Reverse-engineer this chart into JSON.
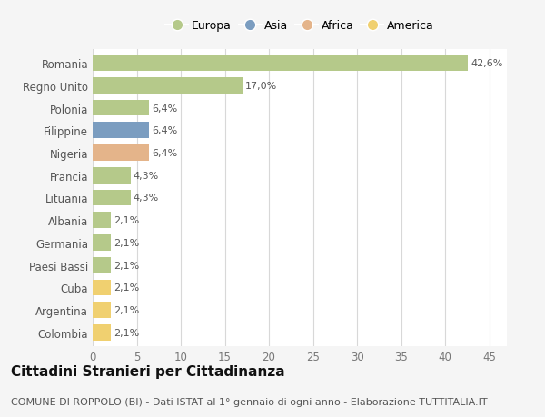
{
  "countries": [
    "Romania",
    "Regno Unito",
    "Polonia",
    "Filippine",
    "Nigeria",
    "Francia",
    "Lituania",
    "Albania",
    "Germania",
    "Paesi Bassi",
    "Cuba",
    "Argentina",
    "Colombia"
  ],
  "values": [
    42.6,
    17.0,
    6.4,
    6.4,
    6.4,
    4.3,
    4.3,
    2.1,
    2.1,
    2.1,
    2.1,
    2.1,
    2.1
  ],
  "labels": [
    "42,6%",
    "17,0%",
    "6,4%",
    "6,4%",
    "6,4%",
    "4,3%",
    "4,3%",
    "2,1%",
    "2,1%",
    "2,1%",
    "2,1%",
    "2,1%",
    "2,1%"
  ],
  "colors": [
    "#b5c98a",
    "#b5c98a",
    "#b5c98a",
    "#7b9dc0",
    "#e4b48a",
    "#b5c98a",
    "#b5c98a",
    "#b5c98a",
    "#b5c98a",
    "#b5c98a",
    "#f0d070",
    "#f0d070",
    "#f0d070"
  ],
  "legend_labels": [
    "Europa",
    "Asia",
    "Africa",
    "America"
  ],
  "legend_colors": [
    "#b5c98a",
    "#7b9dc0",
    "#e4b48a",
    "#f0d070"
  ],
  "title": "Cittadini Stranieri per Cittadinanza",
  "subtitle": "COMUNE DI ROPPOLO (BI) - Dati ISTAT al 1° gennaio di ogni anno - Elaborazione TUTTITALIA.IT",
  "xlim": [
    0,
    47
  ],
  "xticks": [
    0,
    5,
    10,
    15,
    20,
    25,
    30,
    35,
    40,
    45
  ],
  "background_color": "#f5f5f5",
  "plot_bg_color": "#ffffff",
  "grid_color": "#d8d8d8",
  "bar_height": 0.72,
  "title_fontsize": 11,
  "subtitle_fontsize": 8,
  "tick_fontsize": 8.5,
  "label_fontsize": 8
}
